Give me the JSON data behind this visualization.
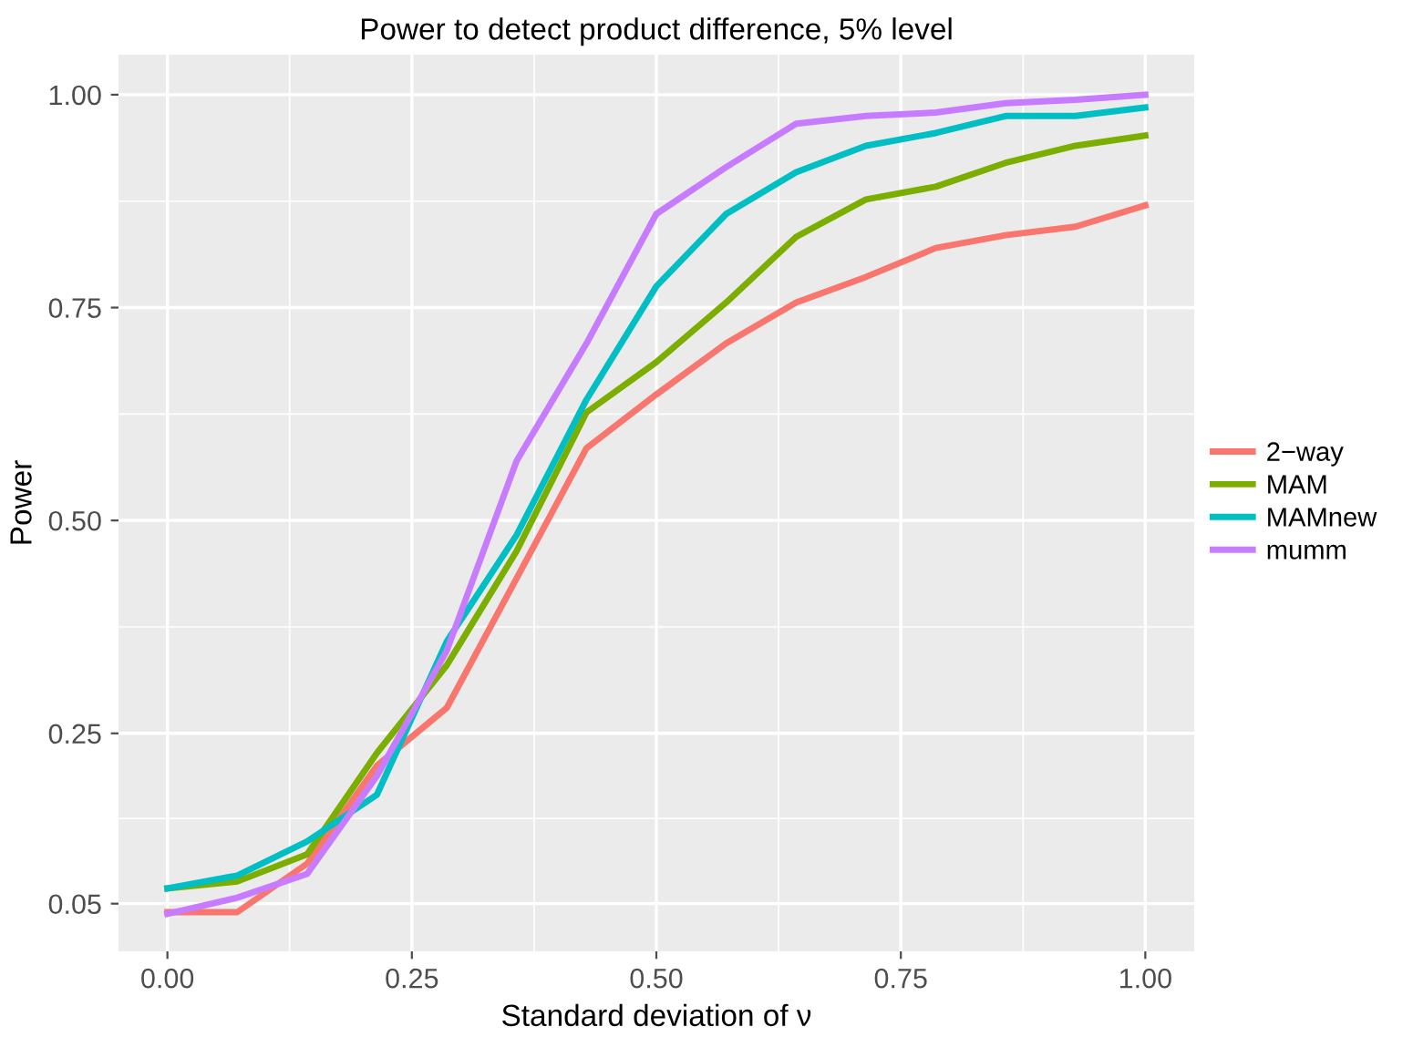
{
  "chart_data": {
    "type": "line",
    "title": "Power to detect product difference, 5% level",
    "xlabel": "Standard deviation of ν",
    "ylabel": "Power",
    "x": [
      0,
      0.0714,
      0.1429,
      0.2143,
      0.2857,
      0.3571,
      0.4286,
      0.5,
      0.5714,
      0.6429,
      0.7143,
      0.7857,
      0.8571,
      0.9286,
      1.0
    ],
    "series": [
      {
        "name": "2−way",
        "color": "#f8766d",
        "values": [
          0.04,
          0.04,
          0.097,
          0.212,
          0.28,
          0.432,
          0.585,
          0.648,
          0.708,
          0.756,
          0.786,
          0.82,
          0.835,
          0.845,
          0.87
        ]
      },
      {
        "name": "MAM",
        "color": "#7cae00",
        "values": [
          0.068,
          0.076,
          0.108,
          0.227,
          0.33,
          0.464,
          0.627,
          0.686,
          0.756,
          0.833,
          0.877,
          0.892,
          0.92,
          0.94,
          0.952
        ]
      },
      {
        "name": "MAMnew",
        "color": "#00bfc4",
        "values": [
          0.068,
          0.083,
          0.123,
          0.178,
          0.358,
          0.483,
          0.642,
          0.775,
          0.86,
          0.909,
          0.94,
          0.955,
          0.975,
          0.975,
          0.985
        ]
      },
      {
        "name": "mumm",
        "color": "#c77cff",
        "values": [
          0.038,
          0.057,
          0.085,
          0.2,
          0.347,
          0.57,
          0.708,
          0.86,
          0.915,
          0.966,
          0.975,
          0.979,
          0.99,
          0.994,
          1.0
        ]
      }
    ],
    "xlim": [
      -0.05,
      1.05
    ],
    "ylim": [
      -0.006,
      1.047
    ],
    "xticks": [
      {
        "value": 0,
        "label": "0.00"
      },
      {
        "value": 0.25,
        "label": "0.25"
      },
      {
        "value": 0.5,
        "label": "0.50"
      },
      {
        "value": 0.75,
        "label": "0.75"
      },
      {
        "value": 1.0,
        "label": "1.00"
      }
    ],
    "yticks": [
      {
        "value": 0.05,
        "label": "0.05"
      },
      {
        "value": 0.25,
        "label": "0.25"
      },
      {
        "value": 0.5,
        "label": "0.50"
      },
      {
        "value": 0.75,
        "label": "0.75"
      },
      {
        "value": 1.0,
        "label": "1.00"
      }
    ],
    "grid": true,
    "legend": "right",
    "marker": "none",
    "line_style": "solid"
  }
}
